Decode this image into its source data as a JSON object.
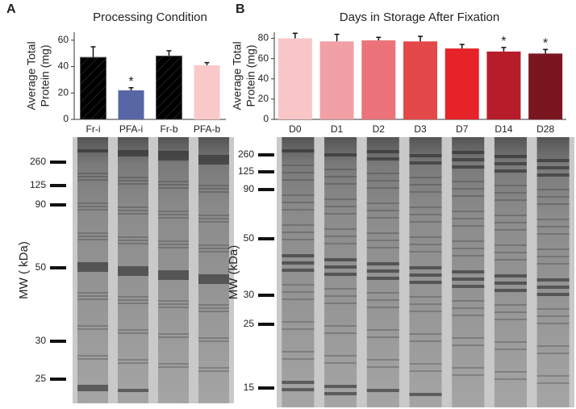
{
  "panel_labels": [
    "A",
    "B"
  ],
  "chart_data": [
    {
      "type": "bar",
      "title": "Processing Condition",
      "ylabel": [
        "Average Total",
        "Protein (mg)"
      ],
      "categories": [
        "Fr-i",
        "PFA-i",
        "Fr-b",
        "PFA-b"
      ],
      "values": [
        47,
        22,
        48,
        41
      ],
      "errors": [
        8,
        2,
        4,
        2
      ],
      "colors": [
        "#5866a6",
        "#5866a6",
        "#f6c0c0",
        "#f9c9c9"
      ],
      "hatch": [
        true,
        false,
        true,
        false
      ],
      "annotations": [
        null,
        "*",
        null,
        null
      ],
      "ylim": [
        0,
        66
      ],
      "yticks": [
        0,
        20,
        40,
        60
      ]
    },
    {
      "type": "bar",
      "title": "Days in Storage After Fixation",
      "ylabel": [
        "Average Total",
        "Protein (mg)"
      ],
      "categories": [
        "D0",
        "D1",
        "D2",
        "D3",
        "D7",
        "D14",
        "D28"
      ],
      "values": [
        80,
        77,
        78,
        77,
        70,
        67,
        65
      ],
      "errors": [
        5,
        7,
        3,
        5,
        4,
        4,
        4
      ],
      "colors": [
        "#f9c6c8",
        "#f1a0a6",
        "#ec737a",
        "#e44848",
        "#e52328",
        "#b71c2a",
        "#7b1620"
      ],
      "hatch": [
        false,
        false,
        false,
        false,
        false,
        false,
        false
      ],
      "annotations": [
        null,
        null,
        null,
        null,
        null,
        "*",
        "*"
      ],
      "ylim": [
        0,
        86
      ],
      "yticks": [
        0,
        20,
        40,
        60,
        80
      ]
    }
  ],
  "gels": [
    {
      "ylabel": "MW ( kDa)",
      "markers": [
        260,
        125,
        90,
        50,
        30,
        25
      ]
    },
    {
      "ylabel": "MW (kDa)",
      "markers": [
        260,
        125,
        90,
        50,
        30,
        25,
        15
      ]
    }
  ]
}
